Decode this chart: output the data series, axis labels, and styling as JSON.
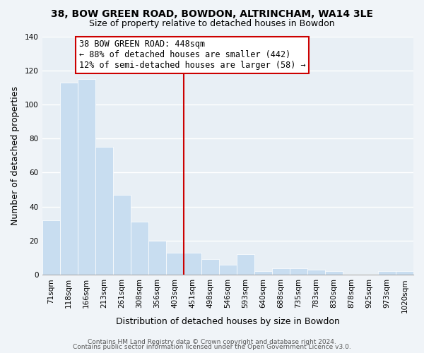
{
  "title_line1": "38, BOW GREEN ROAD, BOWDON, ALTRINCHAM, WA14 3LE",
  "title_line2": "Size of property relative to detached houses in Bowdon",
  "xlabel": "Distribution of detached houses by size in Bowdon",
  "ylabel": "Number of detached properties",
  "bar_labels": [
    "71sqm",
    "118sqm",
    "166sqm",
    "213sqm",
    "261sqm",
    "308sqm",
    "356sqm",
    "403sqm",
    "451sqm",
    "498sqm",
    "546sqm",
    "593sqm",
    "640sqm",
    "688sqm",
    "735sqm",
    "783sqm",
    "830sqm",
    "878sqm",
    "925sqm",
    "973sqm",
    "1020sqm"
  ],
  "bar_values": [
    32,
    113,
    115,
    75,
    47,
    31,
    20,
    13,
    13,
    9,
    6,
    12,
    2,
    4,
    4,
    3,
    2,
    0,
    0,
    2,
    2
  ],
  "bar_color": "#c8ddf0",
  "bar_edge_color": "#ffffff",
  "vline_x_index": 8,
  "vline_color": "#cc0000",
  "annotation_line1": "38 BOW GREEN ROAD: 448sqm",
  "annotation_line2": "← 88% of detached houses are smaller (442)",
  "annotation_line3": "12% of semi-detached houses are larger (58) →",
  "annotation_box_facecolor": "#ffffff",
  "annotation_box_edgecolor": "#cc0000",
  "annotation_fontsize": 8.5,
  "ylim": [
    0,
    140
  ],
  "yticks": [
    0,
    20,
    40,
    60,
    80,
    100,
    120,
    140
  ],
  "footer_line1": "Contains HM Land Registry data © Crown copyright and database right 2024.",
  "footer_line2": "Contains public sector information licensed under the Open Government Licence v3.0.",
  "background_color": "#f0f4f8",
  "plot_bg_color": "#e8eff5",
  "grid_color": "#ffffff",
  "title_fontsize": 10,
  "subtitle_fontsize": 9,
  "axis_label_fontsize": 9,
  "tick_fontsize": 7.5,
  "footer_fontsize": 6.5
}
